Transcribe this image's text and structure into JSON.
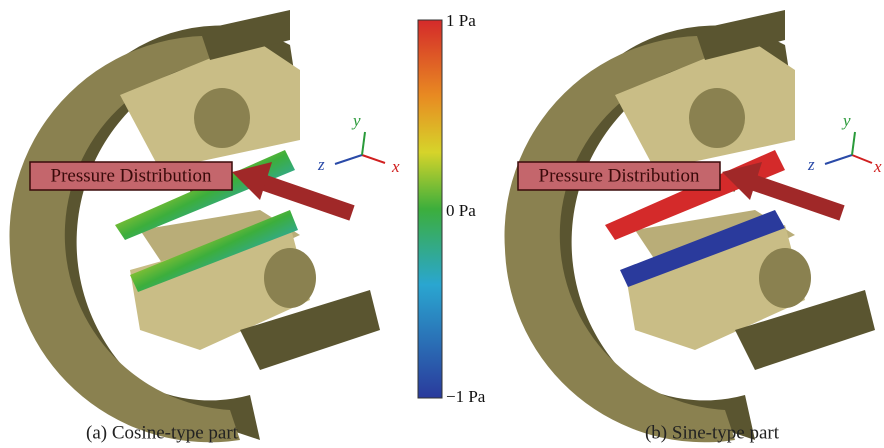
{
  "colorbar": {
    "labels": [
      "1 Pa",
      "0 Pa",
      "−1 Pa"
    ]
  },
  "panels": [
    {
      "caption": "(a) Cosine-type part",
      "callout": "Pressure Distribution",
      "axes": {
        "z": "z",
        "y": "y",
        "x": "x"
      }
    },
    {
      "caption": "(b) Sine-type part",
      "callout": "Pressure Distribution",
      "axes": {
        "z": "z",
        "y": "y",
        "x": "x"
      }
    }
  ]
}
